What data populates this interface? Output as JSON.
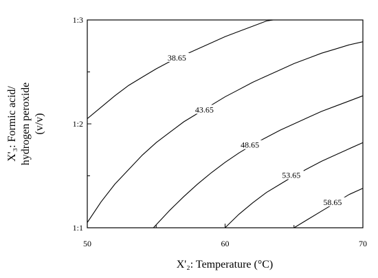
{
  "chart_data": {
    "type": "contour",
    "xlabel": "X'₂: Temperature (°C)",
    "ylabel_lines": [
      "X'₃: Formic acid/",
      "hydrogen peroxide",
      "(v/v)"
    ],
    "xlim": [
      50,
      70
    ],
    "ylim": [
      1,
      3
    ],
    "x_ticks": [
      {
        "value": 50,
        "label": "50"
      },
      {
        "value": 60,
        "label": "60"
      },
      {
        "value": 70,
        "label": "70"
      }
    ],
    "x_minor_ticks": [
      55,
      65
    ],
    "y_ticks": [
      {
        "value": 1,
        "label": "1:1"
      },
      {
        "value": 2,
        "label": "1:2"
      },
      {
        "value": 3,
        "label": "1:3"
      }
    ],
    "y_minor_ticks": [
      1.5,
      2.5
    ],
    "grid": false,
    "contours": [
      {
        "level": 38.65,
        "label": "38.65",
        "label_at": [
          56.5,
          2.63
        ],
        "points": [
          [
            50,
            2.05
          ],
          [
            51,
            2.16
          ],
          [
            52,
            2.27
          ],
          [
            53,
            2.37
          ],
          [
            54,
            2.45
          ],
          [
            55,
            2.53
          ],
          [
            56,
            2.6
          ],
          [
            57,
            2.66
          ],
          [
            58,
            2.72
          ],
          [
            59,
            2.78
          ],
          [
            60,
            2.84
          ],
          [
            61,
            2.89
          ],
          [
            62,
            2.94
          ],
          [
            63,
            2.99
          ],
          [
            63.5,
            3.0
          ]
        ]
      },
      {
        "level": 43.65,
        "label": "43.65",
        "label_at": [
          58.5,
          2.13
        ],
        "points": [
          [
            50,
            1.05
          ],
          [
            51,
            1.25
          ],
          [
            52,
            1.42
          ],
          [
            53,
            1.56
          ],
          [
            54,
            1.7
          ],
          [
            55,
            1.82
          ],
          [
            56,
            1.92
          ],
          [
            57,
            2.02
          ],
          [
            58,
            2.1
          ],
          [
            59,
            2.18
          ],
          [
            60,
            2.26
          ],
          [
            61,
            2.33
          ],
          [
            62,
            2.4
          ],
          [
            63,
            2.46
          ],
          [
            64,
            2.52
          ],
          [
            65,
            2.58
          ],
          [
            66,
            2.63
          ],
          [
            67,
            2.68
          ],
          [
            68,
            2.72
          ],
          [
            69,
            2.76
          ],
          [
            70,
            2.79
          ]
        ]
      },
      {
        "level": 48.65,
        "label": "48.65",
        "label_at": [
          61.8,
          1.79
        ],
        "points": [
          [
            54.8,
            1.0
          ],
          [
            56,
            1.17
          ],
          [
            57,
            1.3
          ],
          [
            58,
            1.42
          ],
          [
            59,
            1.53
          ],
          [
            60,
            1.63
          ],
          [
            61,
            1.72
          ],
          [
            62,
            1.8
          ],
          [
            63,
            1.87
          ],
          [
            64,
            1.94
          ],
          [
            65,
            2.0
          ],
          [
            66,
            2.06
          ],
          [
            67,
            2.12
          ],
          [
            68,
            2.17
          ],
          [
            69,
            2.22
          ],
          [
            70,
            2.27
          ]
        ]
      },
      {
        "level": 53.65,
        "label": "53.65",
        "label_at": [
          64.8,
          1.5
        ],
        "points": [
          [
            60,
            1.0
          ],
          [
            61,
            1.13
          ],
          [
            62,
            1.24
          ],
          [
            63,
            1.34
          ],
          [
            64,
            1.42
          ],
          [
            65,
            1.5
          ],
          [
            66,
            1.57
          ],
          [
            67,
            1.64
          ],
          [
            68,
            1.7
          ],
          [
            69,
            1.76
          ],
          [
            70,
            1.82
          ]
        ]
      },
      {
        "level": 58.65,
        "label": "58.65",
        "label_at": [
          67.8,
          1.24
        ],
        "points": [
          [
            65,
            1.0
          ],
          [
            66,
            1.08
          ],
          [
            67,
            1.16
          ],
          [
            68,
            1.24
          ],
          [
            69,
            1.32
          ],
          [
            70,
            1.38
          ]
        ]
      }
    ]
  }
}
